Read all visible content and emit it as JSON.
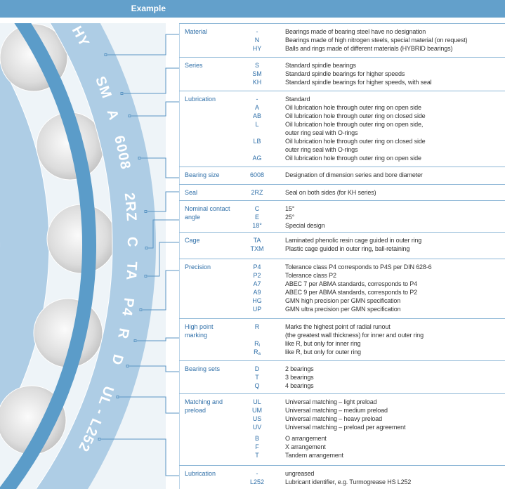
{
  "header": {
    "title": "Example"
  },
  "designation_tokens": [
    "HY",
    "SM",
    "A",
    "6008",
    "2RZ",
    "C",
    "TA",
    "P4",
    "R",
    "D",
    "UL - L252"
  ],
  "colors": {
    "header": "#63a0cb",
    "ring": "#aecde5",
    "cage": "#5b9cc9",
    "label": "#2f6fa8",
    "connector": "#5b95c3"
  },
  "sections": [
    {
      "label": "Material",
      "groups": [
        [
          {
            "code": "-",
            "desc": "Bearings made of bearing steel have no designation"
          },
          {
            "code": "N",
            "desc": "Bearings made of high nitrogen steels, special material (on request)"
          },
          {
            "code": "HY",
            "desc": "Balls and rings made of different materials (HYBRID bearings)"
          }
        ]
      ]
    },
    {
      "label": "Series",
      "groups": [
        [
          {
            "code": "S",
            "desc": "Standard spindle bearings"
          },
          {
            "code": "SM",
            "desc": "Standard spindle bearings for higher speeds"
          },
          {
            "code": "KH",
            "desc": "Standard spindle bearings for higher speeds, with seal"
          }
        ]
      ]
    },
    {
      "label": "Lubrication",
      "groups": [
        [
          {
            "code": "-",
            "desc": "Standard"
          },
          {
            "code": "A",
            "desc": "Oil lubrication hole through outer ring on open side"
          },
          {
            "code": "AB",
            "desc": "Oil lubrication hole through outer ring on closed side"
          },
          {
            "code": "L",
            "desc": "Oil lubrication hole through outer ring on open side,"
          },
          {
            "code": "",
            "desc": "outer ring seal with O-rings"
          },
          {
            "code": "LB",
            "desc": "Oil lubrication hole through outer ring on closed side"
          },
          {
            "code": "",
            "desc": "outer ring seal with O-rings"
          },
          {
            "code": "AG",
            "desc": "Oil lubrication hole through outer ring on open side"
          }
        ]
      ]
    },
    {
      "label": "Bearing size",
      "groups": [
        [
          {
            "code": "6008",
            "desc": "Designation of dimension series and bore diameter"
          }
        ]
      ]
    },
    {
      "label": "Seal",
      "groups": [
        [
          {
            "code": "2RZ",
            "desc": "Seal on both sides (for KH series)"
          }
        ]
      ]
    },
    {
      "label": "Nominal contact angle",
      "groups": [
        [
          {
            "code": "C",
            "desc": "15°"
          },
          {
            "code": "E",
            "desc": "25°"
          },
          {
            "code": "18°",
            "desc": "Special design"
          }
        ]
      ]
    },
    {
      "label": "Cage",
      "groups": [
        [
          {
            "code": "TA",
            "desc": "Laminated phenolic resin cage guided in outer ring"
          },
          {
            "code": "TXM",
            "desc": "Plastic cage guided in outer ring, ball-retaining"
          }
        ]
      ]
    },
    {
      "label": "Precision",
      "groups": [
        [
          {
            "code": "P4",
            "desc": "Tolerance class P4 corresponds to P4S per DIN 628-6"
          },
          {
            "code": "P2",
            "desc": "Tolerance class P2"
          },
          {
            "code": "A7",
            "desc": "ABEC 7 per ABMA standards, corresponds to P4"
          },
          {
            "code": "A9",
            "desc": "ABEC 9 per ABMA standards, corresponds to P2"
          },
          {
            "code": "HG",
            "desc": "GMN high precision per GMN specification"
          },
          {
            "code": "UP",
            "desc": "GMN ultra precision per GMN specification"
          }
        ]
      ]
    },
    {
      "label": "High point marking",
      "groups": [
        [
          {
            "code": "R",
            "desc": "Marks the highest point of radial runout"
          },
          {
            "code": "",
            "desc": "(the greatest wall thickness) for inner and outer ring"
          },
          {
            "code": "R",
            "sub": "i",
            "desc": "like R, but only for inner ring"
          },
          {
            "code": "R",
            "sub": "a",
            "desc": "like R, but only for outer ring"
          }
        ]
      ]
    },
    {
      "label": "Bearing sets",
      "groups": [
        [
          {
            "code": "D",
            "desc": "2 bearings"
          },
          {
            "code": "T",
            "desc": "3 bearings"
          },
          {
            "code": "Q",
            "desc": "4 bearings"
          }
        ]
      ]
    },
    {
      "label": "Matching and preload",
      "groups": [
        [
          {
            "code": "UL",
            "desc": "Universal matching – light preload"
          },
          {
            "code": "UM",
            "desc": "Universal matching – medium preload"
          },
          {
            "code": "US",
            "desc": "Universal matching – heavy preload"
          },
          {
            "code": "UV",
            "desc": "Universal matching – preload per agreement"
          }
        ],
        [
          {
            "code": "B",
            "desc": "O arrangement"
          },
          {
            "code": "F",
            "desc": "X arrangement"
          },
          {
            "code": "T",
            "desc": "Tandem arrangement"
          }
        ]
      ]
    },
    {
      "label": "Lubrication",
      "groups": [
        [
          {
            "code": "-",
            "desc": "ungreased"
          },
          {
            "code": "L252",
            "desc": "Lubricant identifier, e.g. Turmogrease HS L252"
          }
        ]
      ]
    }
  ]
}
